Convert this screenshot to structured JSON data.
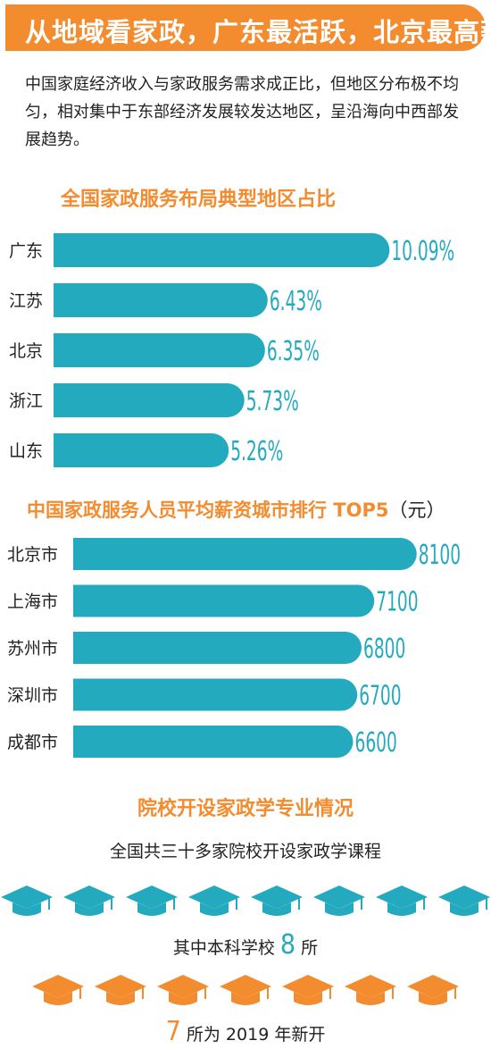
{
  "banner": {
    "title": "从地域看家政，广东最活跃，北京最高薪"
  },
  "intro": "中国家庭经济收入与家政服务需求成正比，但地区分布极不均匀，相对集中于东部经济发展较发达地区，呈沿海向中西部发展趋势。",
  "colors": {
    "accent": "#f28c2f",
    "bar": "#24aabf",
    "value_text": "#24aabf"
  },
  "chart_data": [
    {
      "type": "bar",
      "title": "全国家政服务布局典型地区占比",
      "categories": [
        "广东",
        "江苏",
        "北京",
        "浙江",
        "山东"
      ],
      "values": [
        10.09,
        6.43,
        6.35,
        5.73,
        5.26
      ],
      "value_labels": [
        "10.09%",
        "6.43%",
        "6.35%",
        "5.73%",
        "5.26%"
      ],
      "orientation": "horizontal",
      "xlabel": "",
      "ylabel": ""
    },
    {
      "type": "bar",
      "title": "中国家政服务人员平均薪资城市排行 TOP5",
      "title_unit": "（元）",
      "categories": [
        "北京市",
        "上海市",
        "苏州市",
        "深圳市",
        "成都市"
      ],
      "values": [
        8100,
        7100,
        6800,
        6700,
        6600
      ],
      "value_labels": [
        "8100",
        "7100",
        "6800",
        "6700",
        "6600"
      ],
      "orientation": "horizontal",
      "xlabel": "",
      "ylabel": ""
    }
  ],
  "schools": {
    "title": "院校开设家政学专业情况",
    "line1": "全国共三十多家院校开设家政学课程",
    "teal_caps": 8,
    "line2_pre": "其中本科学校",
    "line2_num": "8",
    "line2_post": "所",
    "orange_caps": 7,
    "line3_num": "7",
    "line3_post": "所为 2019 年新开",
    "cap_icon": "graduation-cap-icon"
  }
}
